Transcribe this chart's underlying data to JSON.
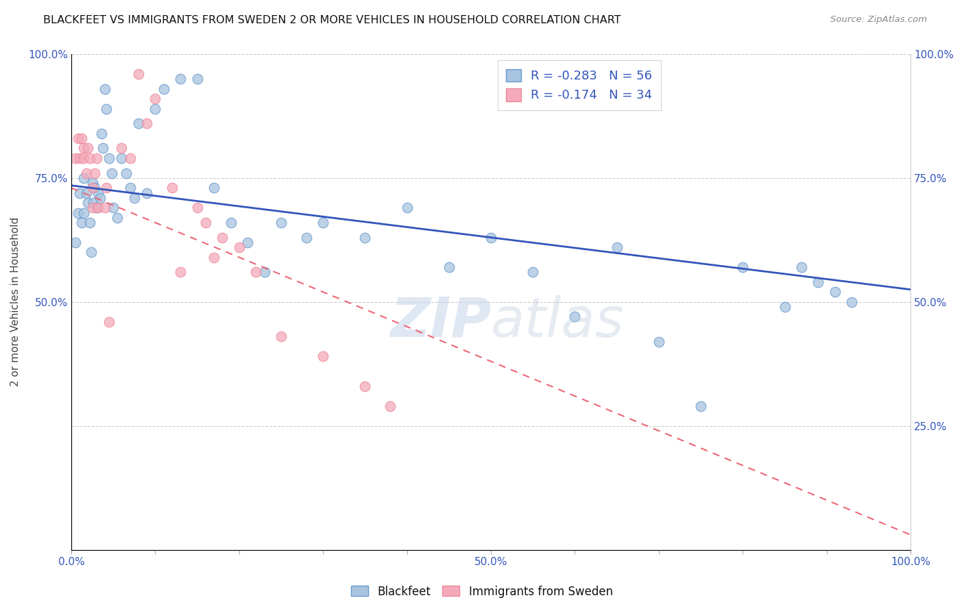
{
  "title": "BLACKFEET VS IMMIGRANTS FROM SWEDEN 2 OR MORE VEHICLES IN HOUSEHOLD CORRELATION CHART",
  "source": "Source: ZipAtlas.com",
  "ylabel": "2 or more Vehicles in Household",
  "xlim": [
    0,
    1.0
  ],
  "ylim": [
    0,
    1.0
  ],
  "xtick_positions": [
    0.0,
    0.1,
    0.2,
    0.3,
    0.4,
    0.5,
    0.6,
    0.7,
    0.8,
    0.9,
    1.0
  ],
  "xtick_labels": [
    "0.0%",
    "",
    "",
    "",
    "",
    "50.0%",
    "",
    "",
    "",
    "",
    "100.0%"
  ],
  "ytick_positions": [
    0.0,
    0.25,
    0.5,
    0.75,
    1.0
  ],
  "ytick_labels_left": [
    "",
    "",
    "50.0%",
    "75.0%",
    "100.0%"
  ],
  "ytick_labels_right": [
    "",
    "25.0%",
    "50.0%",
    "75.0%",
    "100.0%"
  ],
  "legend_blue_label": "R = -0.283   N = 56",
  "legend_pink_label": "R = -0.174   N = 34",
  "blue_color": "#A8C4E0",
  "pink_color": "#F4AABB",
  "blue_edge_color": "#6699CC",
  "pink_edge_color": "#EE8899",
  "trendline_blue_color": "#3355BB",
  "trendline_pink_color": "#EE6677",
  "blue_x": [
    0.005,
    0.008,
    0.01,
    0.012,
    0.015,
    0.015,
    0.018,
    0.02,
    0.022,
    0.024,
    0.025,
    0.026,
    0.028,
    0.03,
    0.032,
    0.034,
    0.036,
    0.038,
    0.04,
    0.042,
    0.045,
    0.048,
    0.05,
    0.055,
    0.06,
    0.065,
    0.07,
    0.075,
    0.08,
    0.09,
    0.1,
    0.11,
    0.13,
    0.15,
    0.17,
    0.19,
    0.21,
    0.23,
    0.25,
    0.28,
    0.3,
    0.35,
    0.4,
    0.45,
    0.5,
    0.55,
    0.6,
    0.65,
    0.7,
    0.75,
    0.8,
    0.85,
    0.87,
    0.89,
    0.91,
    0.93
  ],
  "blue_y": [
    0.62,
    0.68,
    0.72,
    0.66,
    0.75,
    0.68,
    0.72,
    0.7,
    0.66,
    0.6,
    0.74,
    0.7,
    0.73,
    0.69,
    0.72,
    0.71,
    0.84,
    0.81,
    0.93,
    0.89,
    0.79,
    0.76,
    0.69,
    0.67,
    0.79,
    0.76,
    0.73,
    0.71,
    0.86,
    0.72,
    0.89,
    0.93,
    0.95,
    0.95,
    0.73,
    0.66,
    0.62,
    0.56,
    0.66,
    0.63,
    0.66,
    0.63,
    0.69,
    0.57,
    0.63,
    0.56,
    0.47,
    0.61,
    0.42,
    0.29,
    0.57,
    0.49,
    0.57,
    0.54,
    0.52,
    0.5
  ],
  "pink_x": [
    0.005,
    0.008,
    0.01,
    0.012,
    0.015,
    0.015,
    0.018,
    0.02,
    0.022,
    0.025,
    0.025,
    0.028,
    0.03,
    0.032,
    0.04,
    0.042,
    0.045,
    0.06,
    0.07,
    0.08,
    0.09,
    0.1,
    0.12,
    0.13,
    0.15,
    0.16,
    0.17,
    0.18,
    0.2,
    0.22,
    0.25,
    0.3,
    0.35,
    0.38
  ],
  "pink_y": [
    0.79,
    0.83,
    0.79,
    0.83,
    0.81,
    0.79,
    0.76,
    0.81,
    0.79,
    0.73,
    0.69,
    0.76,
    0.79,
    0.69,
    0.69,
    0.73,
    0.46,
    0.81,
    0.79,
    0.96,
    0.86,
    0.91,
    0.73,
    0.56,
    0.69,
    0.66,
    0.59,
    0.63,
    0.61,
    0.56,
    0.43,
    0.39,
    0.33,
    0.29
  ]
}
